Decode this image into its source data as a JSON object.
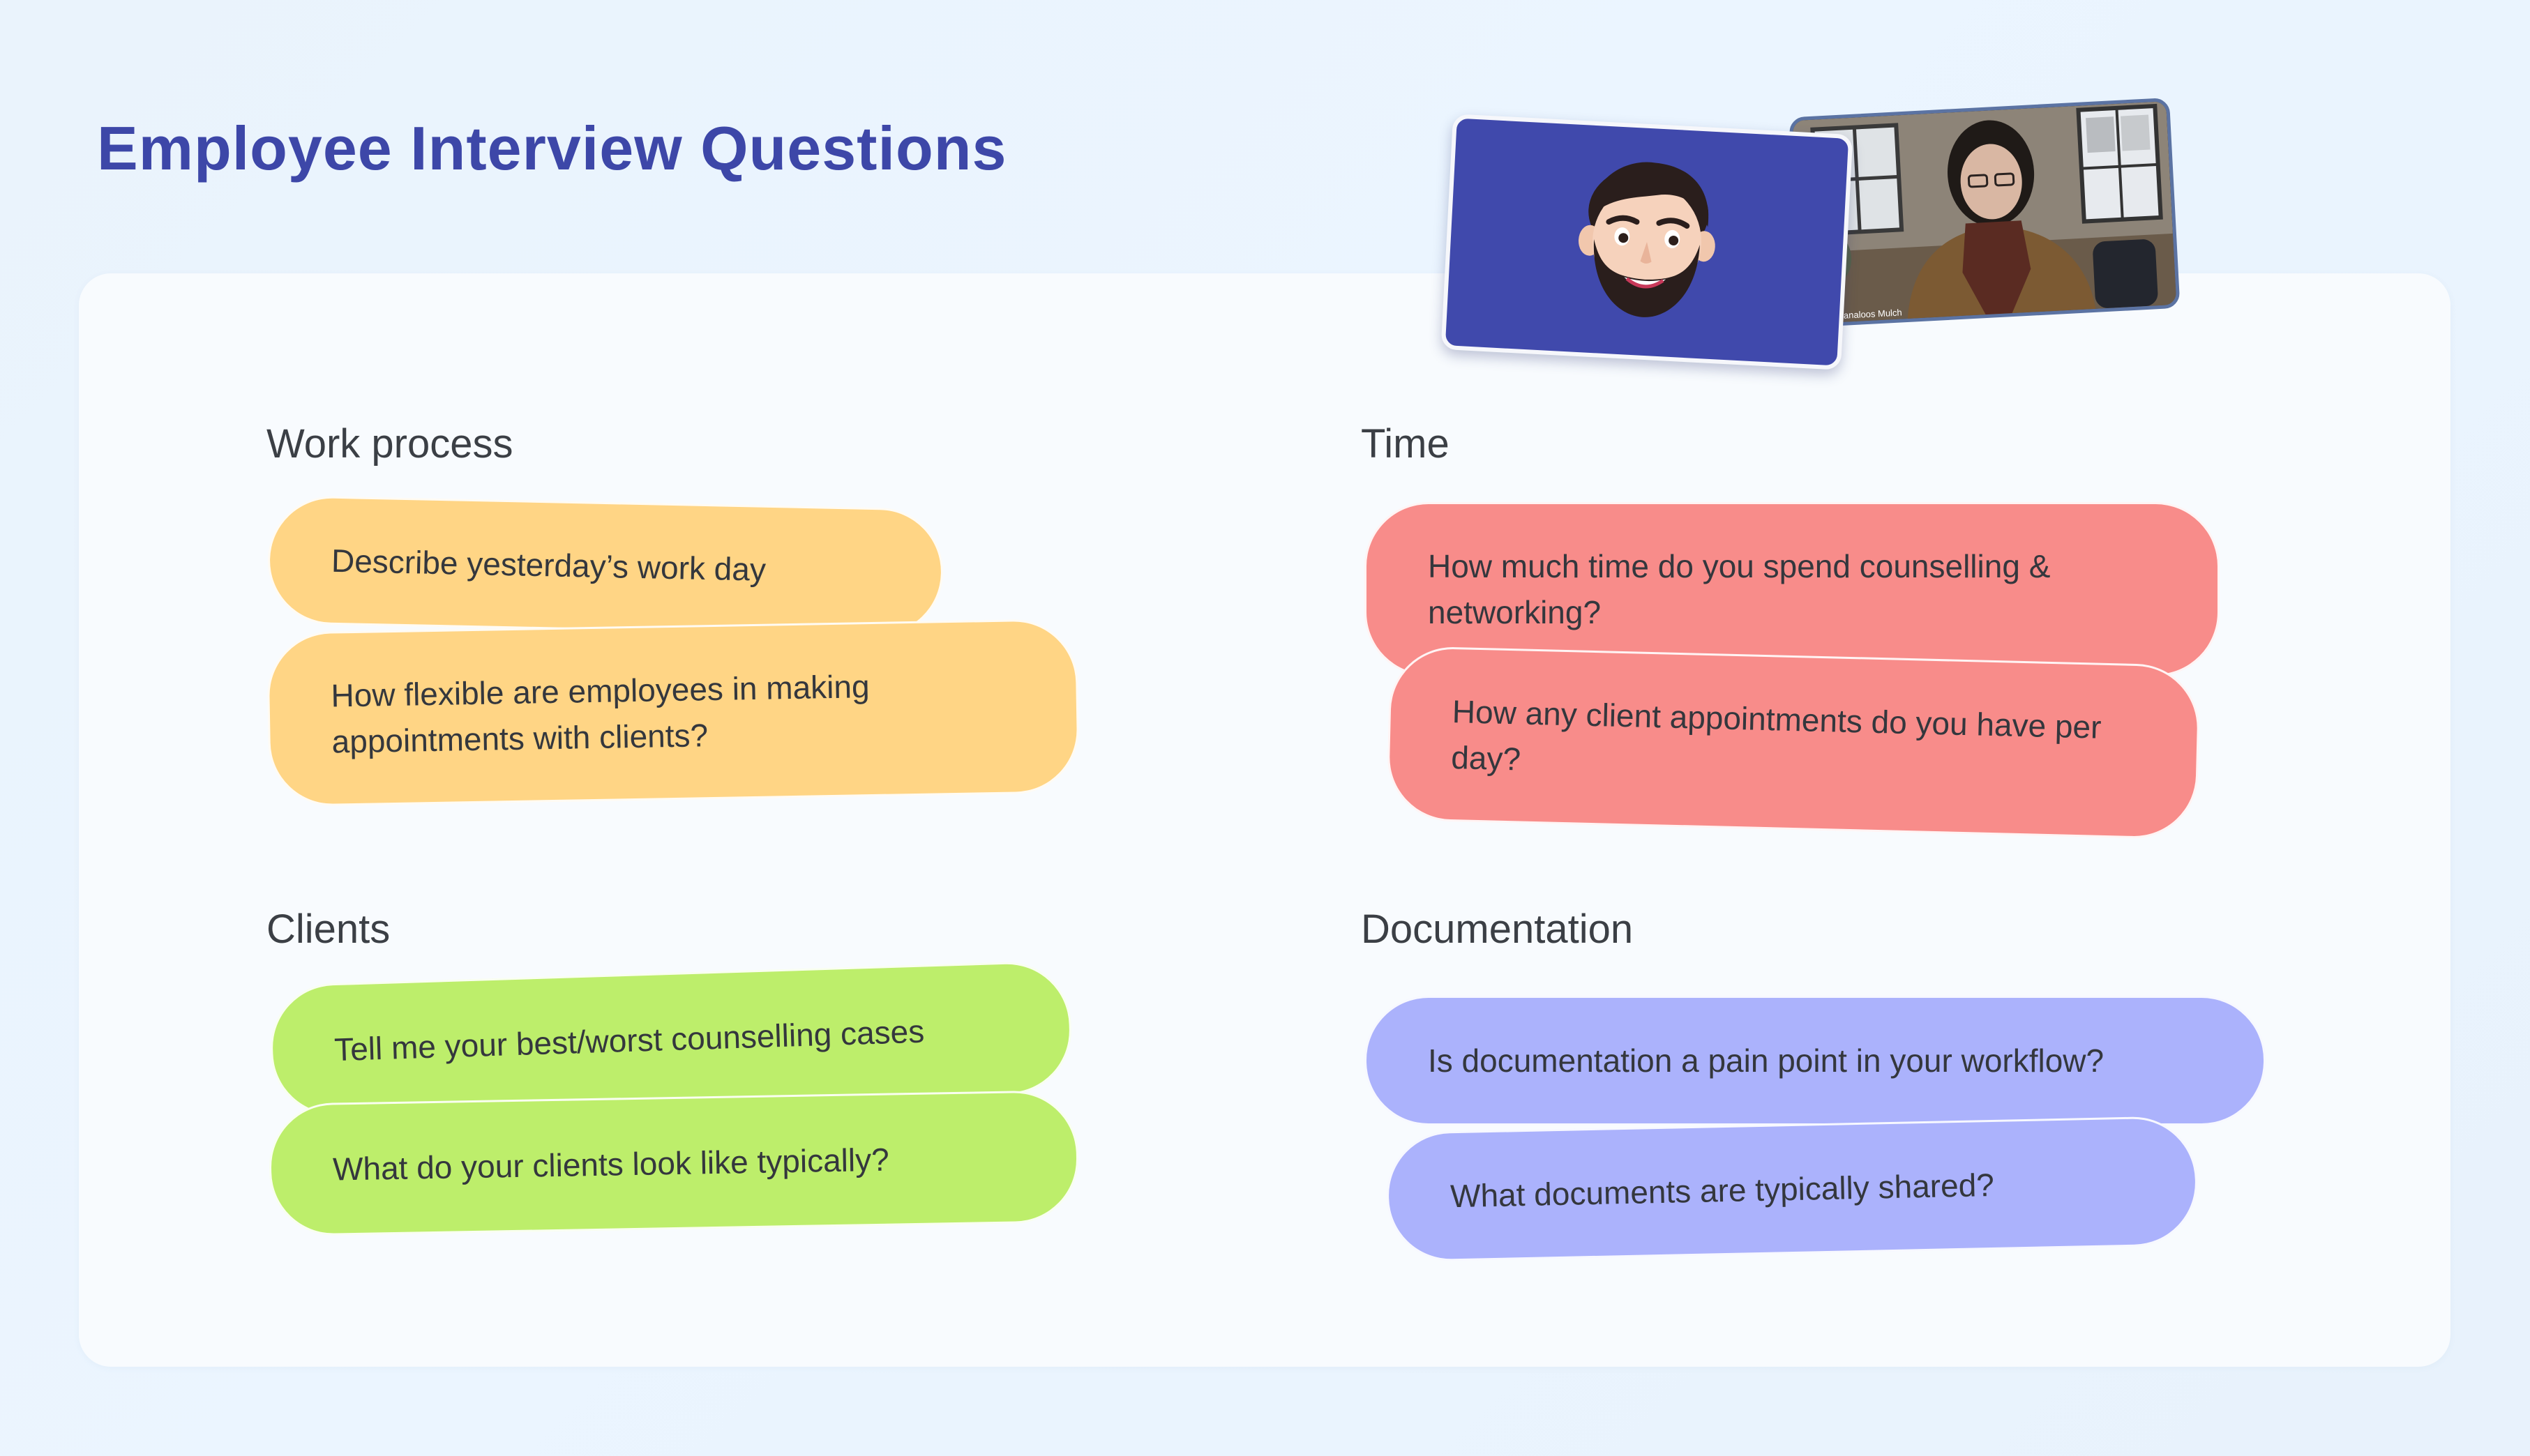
{
  "page": {
    "title": "Employee Interview Questions"
  },
  "colors": {
    "title": "#3d47a8",
    "work_process_notes": "#ffd585",
    "time_notes": "#f88c8a",
    "clients_notes": "#bdee6b",
    "documentation_notes": "#abb2fc",
    "avatar_tile": "#4049ac"
  },
  "sections": {
    "work_process": {
      "title": "Work process",
      "notes": [
        "Describe yesterday’s work day",
        "How flexible are employees in making appointments with clients?"
      ]
    },
    "time": {
      "title": "Time",
      "notes": [
        "How much time do you spend counselling & networking?",
        "How any client appointments do you have per day?"
      ]
    },
    "clients": {
      "title": "Clients",
      "notes": [
        "Tell me your best/worst counselling cases",
        "What do your clients look like typically?"
      ]
    },
    "documentation": {
      "title": "Documentation",
      "notes": [
        "Is documentation a pain point in your workflow?",
        "What documents are typically shared?"
      ]
    }
  },
  "video_call": {
    "avatar_tile": {
      "icon": "memoji-avatar-icon"
    },
    "camera_tile": {
      "participant_name": "Janaloos Mulch"
    }
  }
}
